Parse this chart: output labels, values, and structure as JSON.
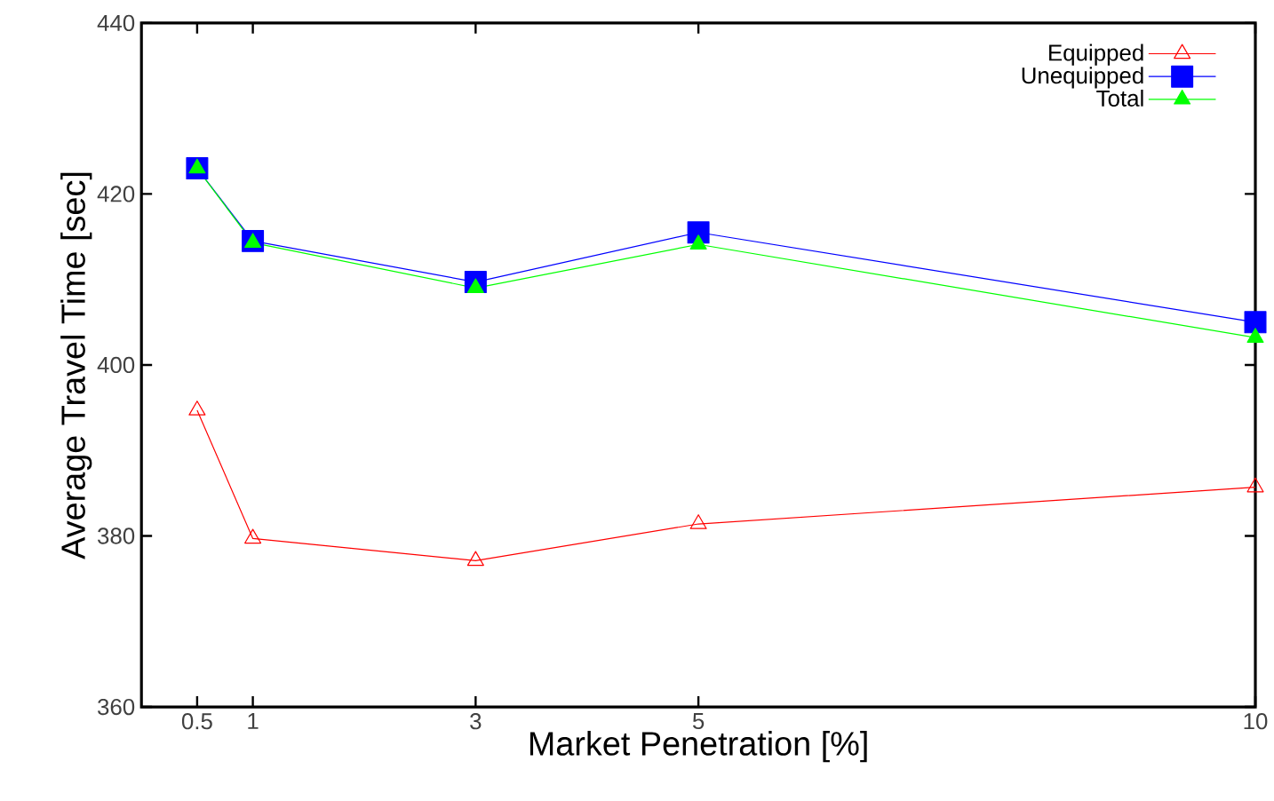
{
  "chart_data": {
    "type": "line",
    "xlabel": "Market Penetration [%]",
    "ylabel": "Average Travel Time [sec]",
    "x": [
      0.5,
      1,
      3,
      5,
      10
    ],
    "series": [
      {
        "name": "Equipped",
        "color": "#ff0000",
        "marker": "triangle-open",
        "values": [
          394.7,
          379.7,
          377.1,
          381.4,
          385.7
        ]
      },
      {
        "name": "Unequipped",
        "color": "#0000ff",
        "marker": "square",
        "values": [
          423.0,
          414.5,
          409.7,
          415.5,
          405.0
        ]
      },
      {
        "name": "Total",
        "color": "#00ff00",
        "marker": "triangle",
        "values": [
          423.0,
          414.3,
          409.0,
          414.1,
          403.2
        ]
      }
    ],
    "xlim": [
      0,
      10
    ],
    "xticks": [
      0.5,
      1,
      3,
      5,
      10
    ],
    "ylim": [
      360,
      440
    ],
    "yticks": [
      360,
      380,
      400,
      420,
      440
    ],
    "grid": false,
    "legend": "top right",
    "line_style": "solid"
  }
}
